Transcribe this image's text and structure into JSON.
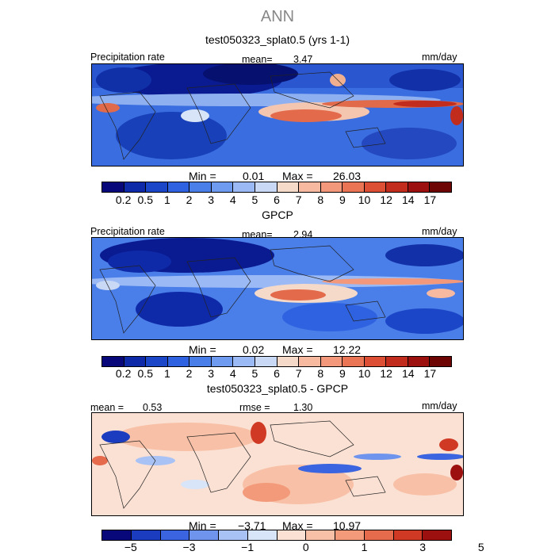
{
  "figure": {
    "title": "ANN"
  },
  "panels": [
    {
      "title": "test050323_splat0.5 (yrs 1-1)",
      "left_label": "Precipitation rate",
      "center_label": "mean=",
      "center_value": "3.47",
      "units": "mm/day",
      "min_label": "Min =",
      "min_value": "0.01",
      "max_label": "Max =",
      "max_value": "26.03"
    },
    {
      "title": "GPCP",
      "left_label": "Precipitation rate",
      "center_label": "mean=",
      "center_value": "2.94",
      "units": "mm/day",
      "min_label": "Min =",
      "min_value": "0.02",
      "max_label": "Max =",
      "max_value": "12.22"
    },
    {
      "title": "test050323_splat0.5 - GPCP",
      "left_label": "mean =",
      "left_value": "0.53",
      "center_label": "rmse =",
      "center_value": "1.30",
      "units": "mm/day",
      "min_label": "Min =",
      "min_value": "−3.71",
      "max_label": "Max =",
      "max_value": "10.97"
    }
  ],
  "chart_data": [
    {
      "type": "heatmap",
      "title": "test050323_splat0.5 (yrs 1-1)",
      "variable": "Precipitation rate",
      "units": "mm/day",
      "mean": 3.47,
      "min": 0.01,
      "max": 26.03,
      "colorbar_levels": [
        "0.2",
        "0.5",
        "1",
        "2",
        "3",
        "4",
        "5",
        "6",
        "7",
        "8",
        "9",
        "10",
        "12",
        "14",
        "17"
      ],
      "colorbar_colors": [
        "#08087a",
        "#0f2aa8",
        "#1c46c8",
        "#2e62e0",
        "#4a7ee8",
        "#6e9bf0",
        "#9ab9f5",
        "#c8d8f5",
        "#f5d9c9",
        "#f7b99f",
        "#f3987a",
        "#ea7555",
        "#dc4f34",
        "#c22c1c",
        "#9c1010",
        "#6e0505"
      ]
    },
    {
      "type": "heatmap",
      "title": "GPCP",
      "variable": "Precipitation rate",
      "units": "mm/day",
      "mean": 2.94,
      "min": 0.02,
      "max": 12.22,
      "colorbar_levels": [
        "0.2",
        "0.5",
        "1",
        "2",
        "3",
        "4",
        "5",
        "6",
        "7",
        "8",
        "9",
        "10",
        "12",
        "14",
        "17"
      ],
      "colorbar_colors": [
        "#08087a",
        "#0f2aa8",
        "#1c46c8",
        "#2e62e0",
        "#4a7ee8",
        "#6e9bf0",
        "#9ab9f5",
        "#c8d8f5",
        "#f5d9c9",
        "#f7b99f",
        "#f3987a",
        "#ea7555",
        "#dc4f34",
        "#c22c1c",
        "#9c1010",
        "#6e0505"
      ]
    },
    {
      "type": "heatmap",
      "title": "test050323_splat0.5 - GPCP",
      "units": "mm/day",
      "mean": 0.53,
      "rmse": 1.3,
      "min": -3.71,
      "max": 10.97,
      "colorbar_levels": [
        "−5",
        "−3",
        "−1",
        "0",
        "1",
        "3",
        "5"
      ],
      "colorbar_colors": [
        "#08087a",
        "#1c3cc0",
        "#3a64e0",
        "#6e94ee",
        "#a9c2f5",
        "#d8e4f8",
        "#fbe1d4",
        "#f8c0a6",
        "#f29a7a",
        "#e66a4c",
        "#d03a25",
        "#9c1010"
      ]
    }
  ]
}
